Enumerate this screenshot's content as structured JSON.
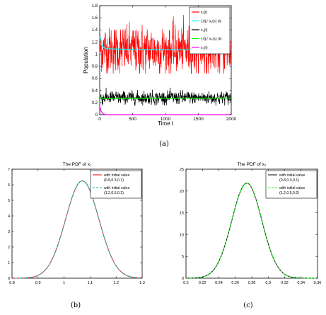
{
  "chart_data": [
    {
      "type": "line",
      "panel_label": "(a)",
      "title": "",
      "xlabel": "Time t",
      "ylabel": "Population",
      "xlim": [
        0,
        2000
      ],
      "ylim": [
        0,
        1.8
      ],
      "x_ticks": [
        "0",
        "500",
        "1000",
        "1500",
        "2000"
      ],
      "y_ticks": [
        "0",
        "0.2",
        "0.4",
        "0.6",
        "0.8",
        "1",
        "1.2",
        "1.4",
        "1.6",
        "1.8"
      ],
      "legend_position": "top-right",
      "series": [
        {
          "name": "x₁(t)",
          "color": "#ff0000",
          "x": [
            0,
            2000
          ],
          "y_mean": 1.07,
          "y_min": 0.68,
          "y_max": 1.75,
          "description_values": [
            1.3,
            1.07,
            1.45,
            0.85,
            1.6,
            1.0,
            1.25,
            0.75,
            1.5,
            1.1
          ]
        },
        {
          "name": "1/t∫₀ᵗ x₁(s) ds",
          "color": "#00ffff",
          "x": [
            0,
            50,
            100,
            500,
            1000,
            1500,
            2000
          ],
          "y": [
            1.3,
            1.12,
            1.09,
            1.075,
            1.072,
            1.071,
            1.07
          ]
        },
        {
          "name": "x₂(t)",
          "color": "#000000",
          "x": [
            0,
            2000
          ],
          "y_mean": 0.28,
          "y_min": 0.15,
          "y_max": 0.45,
          "description_values": [
            0.3,
            0.25,
            0.35,
            0.22,
            0.4,
            0.27,
            0.31,
            0.2,
            0.33,
            0.28
          ]
        },
        {
          "name": "1/t∫₀ᵗ x₂(s) ds",
          "color": "#00ff00",
          "x": [
            0,
            50,
            100,
            500,
            1000,
            1500,
            2000
          ],
          "y": [
            0.3,
            0.26,
            0.265,
            0.27,
            0.272,
            0.273,
            0.274
          ]
        },
        {
          "name": "x₃(t)",
          "color": "#ff00ff",
          "x": [
            0,
            10,
            20,
            40,
            60,
            100,
            2000
          ],
          "y": [
            0.15,
            0.1,
            0.06,
            0.03,
            0.01,
            0.0,
            0.0
          ]
        }
      ]
    },
    {
      "type": "line",
      "panel_label": "(b)",
      "title": "The PDF of x₁",
      "xlabel": "",
      "ylabel": "",
      "xlim": [
        0.8,
        1.3
      ],
      "ylim": [
        0,
        7
      ],
      "x_ticks": [
        "0.8",
        "0.9",
        "1",
        "1.1",
        "1.2",
        "1.3"
      ],
      "y_ticks": [
        "0",
        "1",
        "2",
        "3",
        "4",
        "5",
        "6",
        "7"
      ],
      "legend_position": "top-right",
      "series": [
        {
          "name": "with initial value (0.8,0.3,0.1)",
          "color": "#ff0000",
          "style": "solid",
          "distribution": "normal",
          "mean": 1.07,
          "std": 0.064,
          "peak": 6.25
        },
        {
          "name": "with initial value (1.2,0.5,0.2)",
          "color": "#00bfbf",
          "style": "dashed",
          "distribution": "normal",
          "mean": 1.07,
          "std": 0.064,
          "peak": 6.25
        }
      ]
    },
    {
      "type": "line",
      "panel_label": "(c)",
      "title": "The PDF of x₂",
      "xlabel": "",
      "ylabel": "",
      "xlim": [
        0.2,
        0.36
      ],
      "ylim": [
        0,
        25
      ],
      "x_ticks": [
        "0.2",
        "0.22",
        "0.24",
        "0.26",
        "0.28",
        "0.3",
        "0.32",
        "0.34",
        "0.36"
      ],
      "y_ticks": [
        "0",
        "5",
        "10",
        "15",
        "20",
        "25"
      ],
      "legend_position": "top-right",
      "series": [
        {
          "name": "with initial value (0.8,0.3,0.1)",
          "color": "#000000",
          "style": "solid",
          "distribution": "normal",
          "mean": 0.274,
          "std": 0.0183,
          "peak": 21.8
        },
        {
          "name": "with initial value (1.2,0.5,0.2)",
          "color": "#00ff00",
          "style": "dashed",
          "distribution": "normal",
          "mean": 0.274,
          "std": 0.0183,
          "peak": 21.8
        }
      ]
    }
  ]
}
